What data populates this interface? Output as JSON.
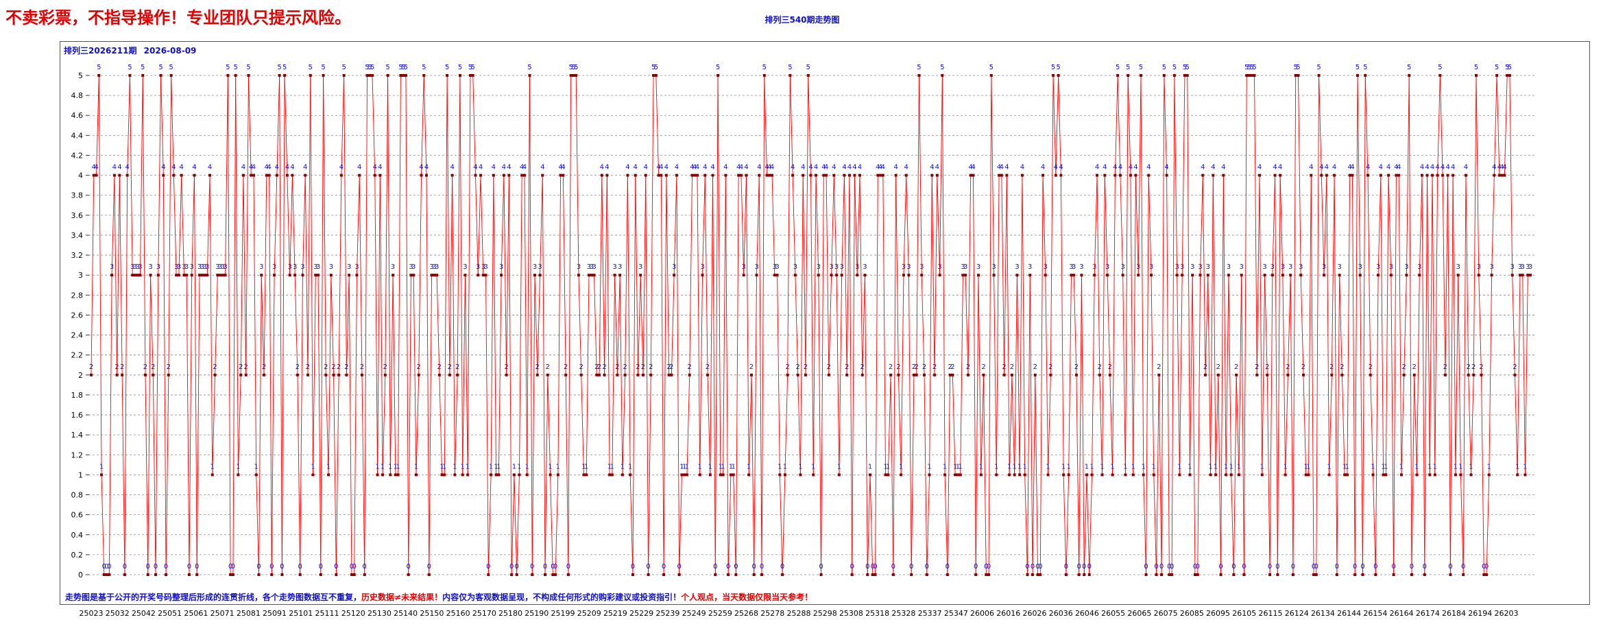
{
  "header": {
    "slogan": "不卖彩票，不指导操作！专业团队只提示风险。",
    "title": "排列三540期走势图"
  },
  "panel": {
    "period_label": "排列三2026211期",
    "date_label": "2026-08-09"
  },
  "footer": {
    "part1": "走势图是基于公开的开奖号码整理后形成的连贯折线，各个走势图数据互不重复，",
    "part2": "历史数据≠未来结果！",
    "part3": "内容仅为客观数据呈现，不构成任何形式的购彩建议或投资指引！",
    "part4": "个人观点，当天数据仅限当天参考！"
  },
  "colors": {
    "line": "#ff0000",
    "marker": "#8b0000",
    "label": "#1010c0",
    "grid": "#888888"
  },
  "chart_data": {
    "type": "line",
    "title": "排列三540期走势图",
    "ylim": [
      0,
      5
    ],
    "ytick_step": 0.2,
    "grid": true,
    "x_tick_labels": [
      "25023",
      "25032",
      "25042",
      "25051",
      "25061",
      "25071",
      "25081",
      "25091",
      "25101",
      "25111",
      "25120",
      "25130",
      "25140",
      "25150",
      "25160",
      "25170",
      "25180",
      "25190",
      "25199",
      "25209",
      "25219",
      "25229",
      "25239",
      "25249",
      "25259",
      "25268",
      "25278",
      "25288",
      "25298",
      "25308",
      "25318",
      "25328",
      "25337",
      "25347",
      "26006",
      "26016",
      "26026",
      "26036",
      "26046",
      "26055",
      "26065",
      "26075",
      "26085",
      "26095",
      "26105",
      "26115",
      "26124",
      "26134",
      "26144",
      "26154",
      "26164",
      "26174",
      "26184",
      "26194",
      "26203"
    ],
    "series": [
      {
        "values": [
          2,
          4,
          4,
          5,
          1,
          0,
          0,
          0,
          3,
          4,
          2,
          4,
          2,
          0,
          4,
          5,
          3,
          3,
          3,
          3,
          5,
          2,
          0,
          3,
          2,
          0,
          3,
          5,
          4,
          0,
          2,
          5,
          4,
          3,
          3,
          4,
          3,
          3,
          0,
          3,
          4,
          0,
          3,
          3,
          3,
          3,
          4,
          1,
          2,
          3,
          3,
          3,
          3,
          5,
          0,
          0,
          5,
          1,
          2,
          4,
          2,
          5,
          4,
          4,
          1,
          0,
          3,
          2,
          4,
          4,
          0,
          3,
          4,
          5,
          0,
          5,
          4,
          3,
          4,
          3,
          2,
          0,
          3,
          4,
          2,
          5,
          1,
          3,
          3,
          0,
          5,
          2,
          1,
          3,
          2,
          0,
          2,
          4,
          5,
          2,
          3,
          0,
          0,
          3,
          4,
          2,
          0,
          5,
          5,
          5,
          4,
          1,
          4,
          1,
          2,
          5,
          1,
          3,
          1,
          1,
          5,
          5,
          5,
          0,
          3,
          3,
          1,
          2,
          4,
          5,
          4,
          0,
          3,
          3,
          3,
          2,
          1,
          1,
          5,
          2,
          4,
          1,
          2,
          5,
          1,
          3,
          1,
          5,
          5,
          4,
          3,
          4,
          3,
          3,
          0,
          1,
          4,
          1,
          1,
          3,
          4,
          2,
          4,
          0,
          1,
          0,
          1,
          4,
          4,
          1,
          5,
          0,
          3,
          2,
          3,
          4,
          0,
          2,
          1,
          0,
          0,
          1,
          4,
          4,
          2,
          0,
          5,
          5,
          5,
          3,
          2,
          1,
          1,
          3,
          3,
          3,
          2,
          2,
          4,
          2,
          4,
          1,
          1,
          3,
          2,
          3,
          1,
          2,
          4,
          1,
          0,
          4,
          2,
          3,
          2,
          4,
          0,
          2,
          5,
          5,
          4,
          4,
          0,
          4,
          2,
          2,
          3,
          4,
          0,
          1,
          1,
          1,
          2,
          4,
          4,
          4,
          1,
          3,
          4,
          2,
          1,
          4,
          0,
          5,
          1,
          1,
          4,
          0,
          1,
          1,
          0,
          4,
          4,
          3,
          4,
          1,
          2,
          0,
          3,
          4,
          0,
          5,
          4,
          4,
          4,
          3,
          3,
          1,
          0,
          1,
          2,
          5,
          4,
          3,
          2,
          1,
          4,
          2,
          5,
          4,
          1,
          4,
          3,
          0,
          4,
          4,
          2,
          3,
          4,
          3,
          1,
          3,
          4,
          2,
          4,
          0,
          4,
          3,
          4,
          2,
          3,
          0,
          1,
          0,
          0,
          4,
          4,
          4,
          1,
          1,
          2,
          0,
          4,
          2,
          1,
          3,
          4,
          3,
          0,
          2,
          2,
          5,
          3,
          2,
          0,
          1,
          4,
          2,
          4,
          3,
          5,
          1,
          0,
          2,
          2,
          1,
          1,
          1,
          3,
          3,
          2,
          4,
          4,
          0,
          3,
          1,
          2,
          0,
          0,
          5,
          3,
          1,
          4,
          4,
          2,
          4,
          1,
          2,
          1,
          3,
          1,
          4,
          1,
          0,
          3,
          0,
          2,
          0,
          0,
          4,
          3,
          1,
          2,
          5,
          4,
          5,
          4,
          1,
          0,
          1,
          3,
          3,
          2,
          0,
          3,
          0,
          1,
          0,
          1,
          3,
          4,
          2,
          1,
          4,
          3,
          2,
          1,
          4,
          5,
          4,
          3,
          1,
          5,
          4,
          1,
          4,
          3,
          5,
          1,
          0,
          4,
          3,
          1,
          0,
          2,
          0,
          5,
          4,
          0,
          0,
          5,
          3,
          1,
          3,
          5,
          5,
          1,
          3,
          0,
          0,
          3,
          4,
          2,
          3,
          1,
          4,
          1,
          2,
          0,
          4,
          1,
          3,
          1,
          0,
          2,
          1,
          3,
          0,
          5,
          5,
          5,
          5,
          2,
          4,
          1,
          3,
          2,
          0,
          3,
          4,
          0,
          4,
          3,
          1,
          2,
          3,
          0,
          5,
          5,
          3,
          2,
          1,
          1,
          4,
          0,
          0,
          5,
          4,
          3,
          4,
          1,
          2,
          4,
          0,
          3,
          2,
          1,
          1,
          4,
          4,
          0,
          5,
          3,
          0,
          5,
          4,
          2,
          1,
          0,
          3,
          4,
          1,
          1,
          4,
          3,
          0,
          4,
          4,
          1,
          2,
          3,
          5,
          0,
          2,
          1,
          3,
          4,
          0,
          4,
          1,
          4,
          1,
          4,
          5,
          4,
          2,
          4,
          0,
          4,
          1,
          3,
          1,
          0,
          4,
          2,
          1,
          2,
          5,
          3,
          2,
          0,
          0,
          1,
          3,
          4,
          5,
          4,
          4,
          4,
          5,
          5,
          3,
          2,
          1,
          3,
          3,
          1,
          3,
          3
        ]
      }
    ]
  }
}
